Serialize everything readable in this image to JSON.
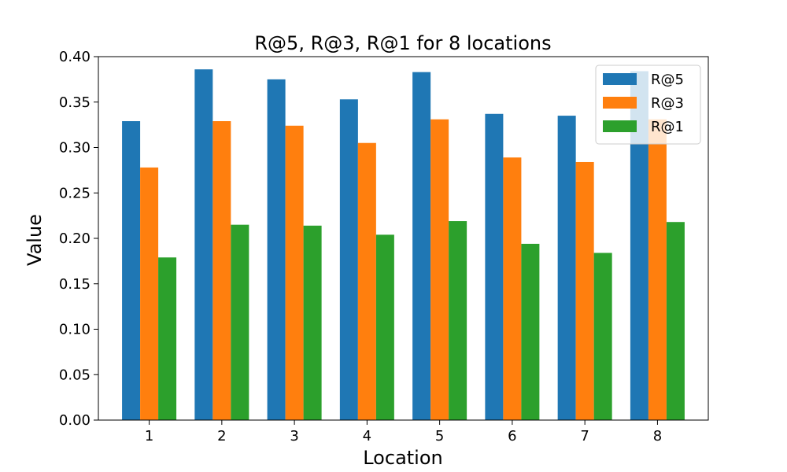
{
  "chart_data": {
    "type": "bar",
    "title": "R@5, R@3, R@1 for 8 locations",
    "xlabel": "Location",
    "ylabel": "Value",
    "categories": [
      "1",
      "2",
      "3",
      "4",
      "5",
      "6",
      "7",
      "8"
    ],
    "yticks": [
      "0.00",
      "0.05",
      "0.10",
      "0.15",
      "0.20",
      "0.25",
      "0.30",
      "0.35",
      "0.40"
    ],
    "ylim": [
      0,
      0.4
    ],
    "grid": false,
    "legend_position": "top-right",
    "series": [
      {
        "name": "R@5",
        "color": "#1f77b4",
        "values": [
          0.329,
          0.386,
          0.375,
          0.353,
          0.383,
          0.337,
          0.335,
          0.384
        ]
      },
      {
        "name": "R@3",
        "color": "#ff7f0e",
        "values": [
          0.278,
          0.329,
          0.324,
          0.305,
          0.331,
          0.289,
          0.284,
          0.331
        ]
      },
      {
        "name": "R@1",
        "color": "#2ca02c",
        "values": [
          0.179,
          0.215,
          0.214,
          0.204,
          0.219,
          0.194,
          0.184,
          0.218
        ]
      }
    ]
  }
}
